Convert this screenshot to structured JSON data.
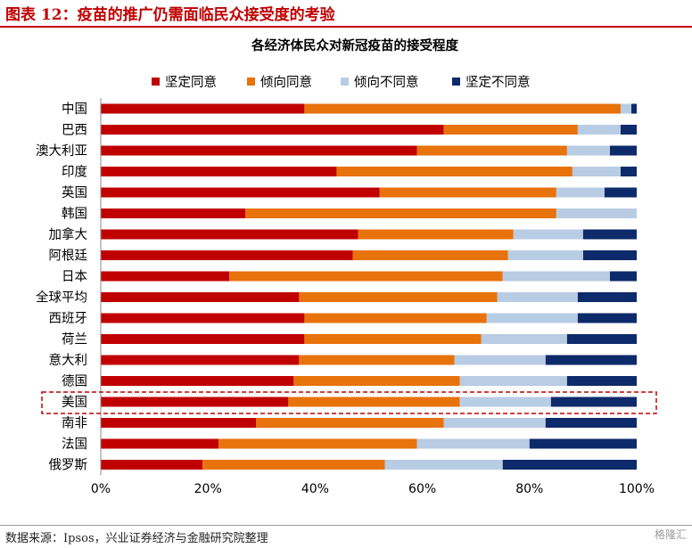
{
  "figure_title": "图表 12：疫苗的推广仍需面临民众接受度的考验",
  "source_note": "数据来源：Ipsos，兴业证券经济与金融研究院整理",
  "watermark": "格隆汇",
  "colors": {
    "strongly_agree": "#c00000",
    "somewhat_agree": "#e8720c",
    "somewhat_disagree": "#b8cce4",
    "strongly_disagree": "#0d2a6a",
    "highlight_border": "#c00000"
  },
  "chart_data": {
    "type": "bar",
    "orientation": "horizontal",
    "stacked": true,
    "title": "各经济体民众对新冠疫苗的接受程度",
    "xlabel": "",
    "ylabel": "",
    "xlim": [
      0,
      100
    ],
    "x_ticks": [
      "0%",
      "20%",
      "40%",
      "60%",
      "80%",
      "100%"
    ],
    "legend_position": "top",
    "grid": false,
    "highlighted_category": "美国",
    "categories": [
      "中国",
      "巴西",
      "澳大利亚",
      "印度",
      "英国",
      "韩国",
      "加拿大",
      "阿根廷",
      "日本",
      "全球平均",
      "西班牙",
      "荷兰",
      "意大利",
      "德国",
      "美国",
      "南非",
      "法国",
      "俄罗斯"
    ],
    "series": [
      {
        "name": "坚定同意",
        "values": [
          38,
          64,
          59,
          44,
          52,
          27,
          48,
          47,
          24,
          37,
          38,
          38,
          37,
          36,
          35,
          29,
          22,
          19
        ]
      },
      {
        "name": "倾向同意",
        "values": [
          59,
          25,
          28,
          44,
          33,
          58,
          29,
          29,
          51,
          37,
          34,
          33,
          29,
          31,
          32,
          35,
          37,
          34
        ]
      },
      {
        "name": "倾向不同意",
        "values": [
          2,
          8,
          8,
          9,
          9,
          15,
          13,
          14,
          20,
          15,
          17,
          16,
          17,
          20,
          17,
          19,
          21,
          22
        ]
      },
      {
        "name": "坚定不同意",
        "values": [
          1,
          3,
          5,
          3,
          6,
          0,
          10,
          10,
          5,
          11,
          11,
          13,
          17,
          13,
          16,
          17,
          20,
          25
        ]
      }
    ]
  }
}
